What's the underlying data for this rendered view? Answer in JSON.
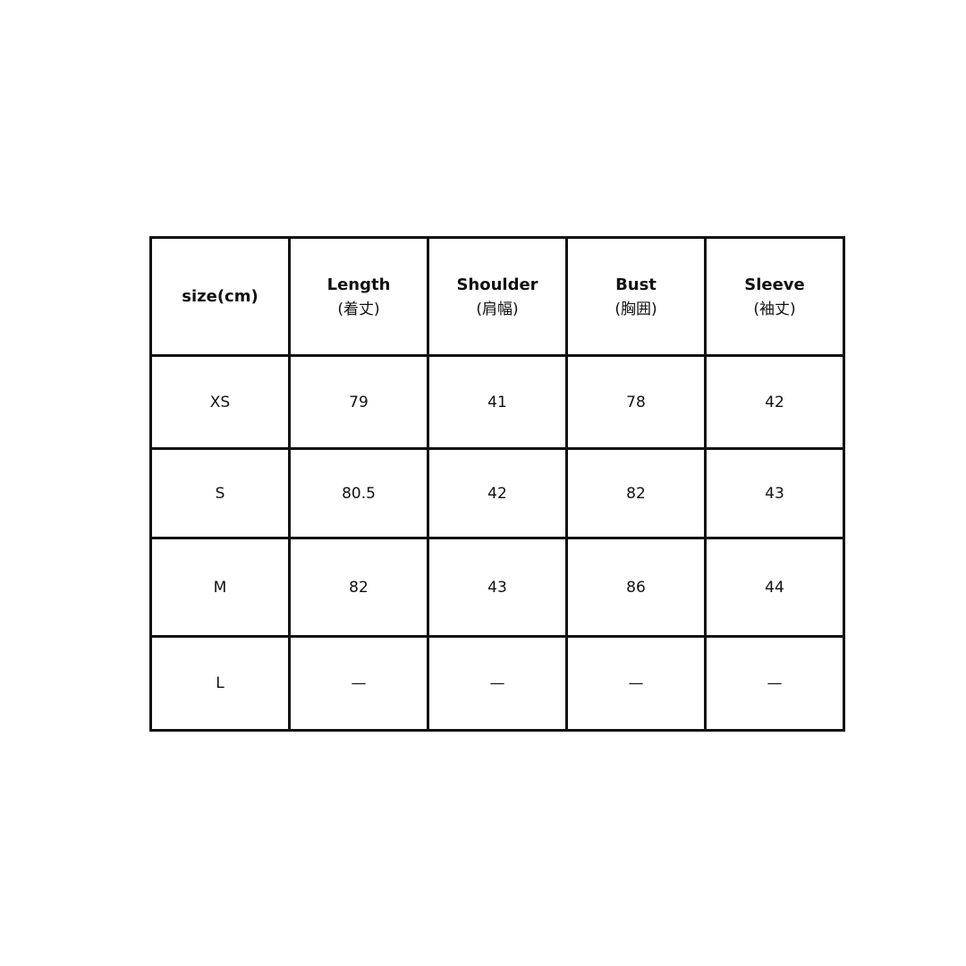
{
  "table": {
    "corner": "size(cm)",
    "columns": [
      {
        "label": "Length",
        "sub": "(着丈)"
      },
      {
        "label": "Shoulder",
        "sub": "(肩幅)"
      },
      {
        "label": "Bust",
        "sub": "(胸囲)"
      },
      {
        "label": "Sleeve",
        "sub": "(袖丈)"
      }
    ],
    "rows": [
      {
        "size": "XS",
        "values": [
          "79",
          "41",
          "78",
          "42"
        ]
      },
      {
        "size": "S",
        "values": [
          "80.5",
          "42",
          "82",
          "43"
        ]
      },
      {
        "size": "M",
        "values": [
          "82",
          "43",
          "86",
          "44"
        ]
      },
      {
        "size": "L",
        "values": [
          "—",
          "—",
          "—",
          "—"
        ]
      }
    ]
  }
}
